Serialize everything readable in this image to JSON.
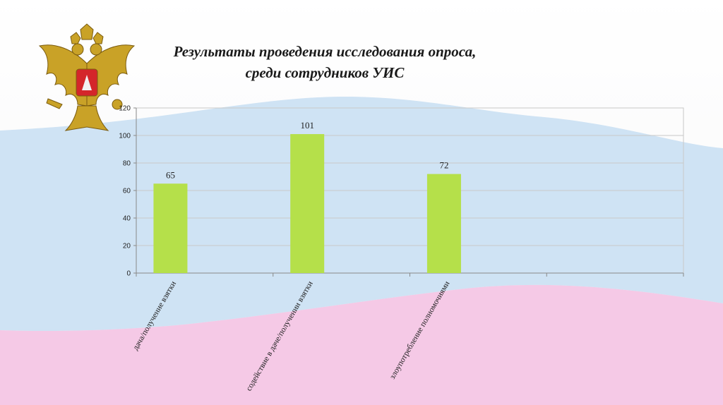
{
  "slide": {
    "title_line1": "Результаты проведения исследования опроса,",
    "title_line2": "среди сотрудников УИС",
    "emblem_icon": "russian-coat-of-arms",
    "flag_colors": {
      "white": "#f7f7f7",
      "blue": "#cfe2f3",
      "pink": "#f4c6e4"
    }
  },
  "chart_data": {
    "type": "bar",
    "categories": [
      "дача/получение взятки",
      "содействие в даче/получении взятки",
      "злоупотребление полномочиями"
    ],
    "values": [
      65,
      101,
      72
    ],
    "data_labels": [
      "65",
      "101",
      "72"
    ],
    "ylim": [
      0,
      120
    ],
    "yticks": [
      "0",
      "20",
      "40",
      "60",
      "80",
      "100",
      "120"
    ],
    "bar_color": "#b5e04a",
    "grid": true,
    "legend": "none"
  }
}
